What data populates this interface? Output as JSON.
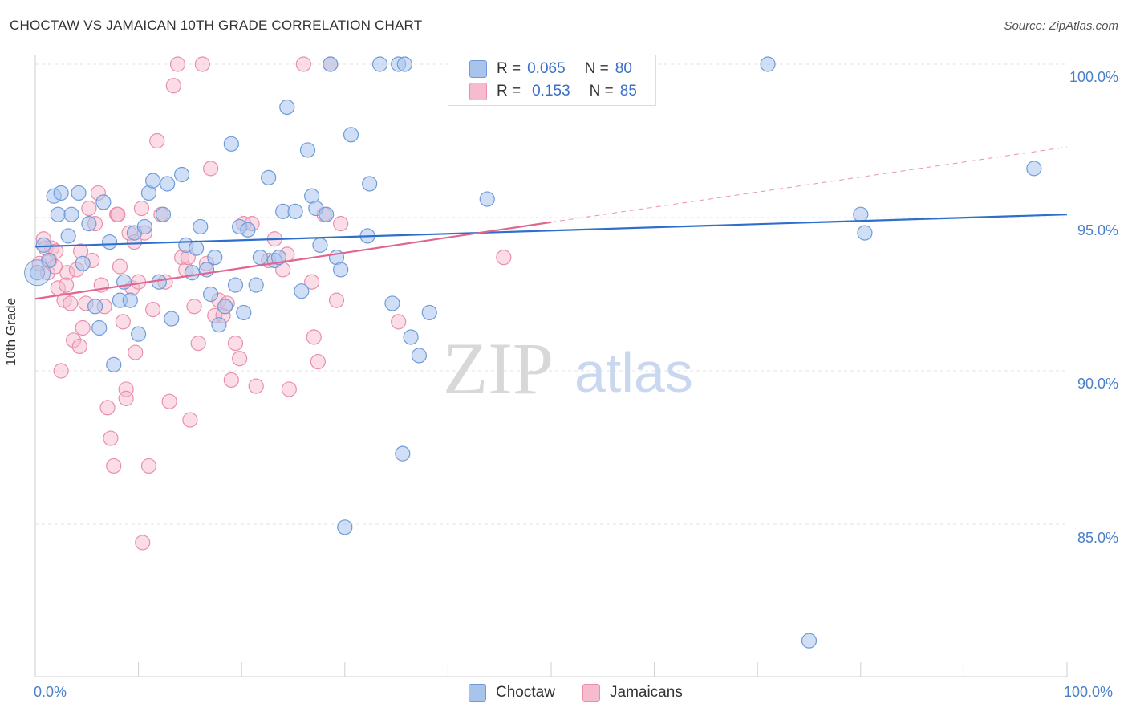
{
  "header": {
    "title": "CHOCTAW VS JAMAICAN 10TH GRADE CORRELATION CHART",
    "source": "Source: ZipAtlas.com"
  },
  "legend": {
    "r_label": "R =",
    "n_label": "N =",
    "choctaw": {
      "r": "0.065",
      "n": "80"
    },
    "jamaicans": {
      "r": "0.153",
      "n": "85"
    }
  },
  "bottom_legend": {
    "choctaw": "Choctaw",
    "jamaicans": "Jamaicans"
  },
  "watermark": {
    "zip": "ZIP",
    "atlas": "atlas"
  },
  "colors": {
    "choctaw_fill": "#a9c4ec",
    "choctaw_stroke": "#6f9bd9",
    "choctaw_line": "#2f6fcc",
    "jamaicans_fill": "#f6bccd",
    "jamaicans_stroke": "#ea8fab",
    "jamaicans_line": "#e06590",
    "tick_text": "#4a7fc8"
  },
  "chart_data": {
    "type": "scatter",
    "title": "CHOCTAW VS JAMAICAN 10TH GRADE CORRELATION CHART",
    "xlabel": "",
    "ylabel": "10th Grade",
    "xlim": [
      0,
      100
    ],
    "ylim": [
      80.5,
      100.8
    ],
    "x_tick_labels": [
      "0.0%",
      "100.0%"
    ],
    "y_ticks": [
      85,
      90,
      95,
      100
    ],
    "y_tick_labels": [
      "85.0%",
      "90.0%",
      "95.0%",
      "100.0%"
    ],
    "grid": true,
    "legend_placement": "top-center",
    "series": [
      {
        "name": "Choctaw",
        "r": 0.065,
        "n": 80,
        "trend": {
          "x": [
            0,
            100
          ],
          "y": [
            94.05,
            95.1
          ]
        },
        "points": [
          [
            0.2,
            93.2
          ],
          [
            0.8,
            94.1
          ],
          [
            1.3,
            93.6
          ],
          [
            1.8,
            95.7
          ],
          [
            2.2,
            95.1
          ],
          [
            2.5,
            95.8
          ],
          [
            3.2,
            94.4
          ],
          [
            3.5,
            95.1
          ],
          [
            4.2,
            95.8
          ],
          [
            4.6,
            93.5
          ],
          [
            5.2,
            94.8
          ],
          [
            5.8,
            92.1
          ],
          [
            6.2,
            91.4
          ],
          [
            6.6,
            95.5
          ],
          [
            7.2,
            94.2
          ],
          [
            7.6,
            90.2
          ],
          [
            8.2,
            92.3
          ],
          [
            8.6,
            92.9
          ],
          [
            9.2,
            92.3
          ],
          [
            9.6,
            94.5
          ],
          [
            10.0,
            91.2
          ],
          [
            10.6,
            94.7
          ],
          [
            11.0,
            95.8
          ],
          [
            11.4,
            96.2
          ],
          [
            12.0,
            92.9
          ],
          [
            12.4,
            95.1
          ],
          [
            12.8,
            96.1
          ],
          [
            13.2,
            91.7
          ],
          [
            14.2,
            96.4
          ],
          [
            14.6,
            94.1
          ],
          [
            15.2,
            93.2
          ],
          [
            15.6,
            94.0
          ],
          [
            16.0,
            94.7
          ],
          [
            16.6,
            93.3
          ],
          [
            17.0,
            92.5
          ],
          [
            17.4,
            93.7
          ],
          [
            17.8,
            91.5
          ],
          [
            18.4,
            92.1
          ],
          [
            19.0,
            97.4
          ],
          [
            19.4,
            92.8
          ],
          [
            19.8,
            94.7
          ],
          [
            20.2,
            91.9
          ],
          [
            20.6,
            94.6
          ],
          [
            21.4,
            92.8
          ],
          [
            21.8,
            93.7
          ],
          [
            22.6,
            96.3
          ],
          [
            23.2,
            93.6
          ],
          [
            23.6,
            93.7
          ],
          [
            24.0,
            95.2
          ],
          [
            24.4,
            98.6
          ],
          [
            25.2,
            95.2
          ],
          [
            25.8,
            92.6
          ],
          [
            26.4,
            97.2
          ],
          [
            26.8,
            95.7
          ],
          [
            27.2,
            95.3
          ],
          [
            27.6,
            94.1
          ],
          [
            28.2,
            95.1
          ],
          [
            28.6,
            100.0
          ],
          [
            29.2,
            93.7
          ],
          [
            29.6,
            93.3
          ],
          [
            30.0,
            84.9
          ],
          [
            30.6,
            97.7
          ],
          [
            32.2,
            94.4
          ],
          [
            32.4,
            96.1
          ],
          [
            33.4,
            100.0
          ],
          [
            34.6,
            92.2
          ],
          [
            35.2,
            100.0
          ],
          [
            35.6,
            87.3
          ],
          [
            35.8,
            100.0
          ],
          [
            36.4,
            91.1
          ],
          [
            37.2,
            90.5
          ],
          [
            38.2,
            91.9
          ],
          [
            43.8,
            95.6
          ],
          [
            45.4,
            100.0
          ],
          [
            71.0,
            100.0
          ],
          [
            75.0,
            81.2
          ],
          [
            80.0,
            95.1
          ],
          [
            80.4,
            94.5
          ],
          [
            96.8,
            96.6
          ],
          [
            44.6,
            100.0
          ]
        ]
      },
      {
        "name": "Jamaicans",
        "r": 0.153,
        "n": 85,
        "trend": {
          "x": [
            0,
            50
          ],
          "y": [
            92.35,
            94.85
          ]
        },
        "trend_extended": {
          "x": [
            50,
            100
          ],
          "y": [
            94.85,
            97.3
          ]
        },
        "points": [
          [
            0.4,
            93.5
          ],
          [
            0.8,
            94.3
          ],
          [
            1.2,
            93.2
          ],
          [
            1.4,
            93.6
          ],
          [
            1.6,
            94.0
          ],
          [
            1.9,
            93.4
          ],
          [
            2.2,
            92.7
          ],
          [
            2.5,
            90.0
          ],
          [
            2.8,
            92.3
          ],
          [
            3.1,
            93.2
          ],
          [
            3.4,
            92.2
          ],
          [
            3.7,
            91.0
          ],
          [
            4.0,
            93.3
          ],
          [
            4.3,
            90.8
          ],
          [
            4.6,
            91.4
          ],
          [
            4.9,
            92.2
          ],
          [
            5.2,
            95.3
          ],
          [
            5.5,
            93.6
          ],
          [
            5.8,
            94.8
          ],
          [
            6.1,
            95.8
          ],
          [
            6.4,
            92.8
          ],
          [
            6.7,
            92.1
          ],
          [
            7.0,
            88.8
          ],
          [
            7.3,
            87.8
          ],
          [
            7.6,
            86.9
          ],
          [
            7.9,
            95.1
          ],
          [
            8.2,
            93.4
          ],
          [
            8.5,
            91.6
          ],
          [
            8.8,
            89.4
          ],
          [
            9.1,
            94.5
          ],
          [
            9.4,
            92.7
          ],
          [
            9.7,
            90.6
          ],
          [
            10.0,
            92.9
          ],
          [
            10.3,
            95.3
          ],
          [
            10.6,
            94.5
          ],
          [
            11.0,
            86.9
          ],
          [
            11.4,
            92.0
          ],
          [
            11.8,
            97.5
          ],
          [
            12.2,
            95.1
          ],
          [
            12.6,
            92.9
          ],
          [
            13.0,
            89.0
          ],
          [
            13.4,
            99.3
          ],
          [
            13.8,
            100.0
          ],
          [
            14.2,
            93.7
          ],
          [
            14.6,
            93.3
          ],
          [
            15.0,
            88.4
          ],
          [
            15.4,
            92.1
          ],
          [
            15.8,
            90.9
          ],
          [
            16.2,
            100.0
          ],
          [
            16.6,
            93.5
          ],
          [
            17.0,
            96.6
          ],
          [
            17.4,
            91.8
          ],
          [
            17.8,
            92.3
          ],
          [
            18.2,
            91.8
          ],
          [
            18.6,
            92.2
          ],
          [
            19.0,
            89.7
          ],
          [
            19.4,
            90.9
          ],
          [
            19.8,
            90.4
          ],
          [
            20.2,
            94.8
          ],
          [
            21.0,
            94.8
          ],
          [
            21.4,
            89.5
          ],
          [
            22.6,
            93.6
          ],
          [
            23.2,
            94.3
          ],
          [
            24.0,
            93.3
          ],
          [
            24.6,
            89.4
          ],
          [
            26.0,
            100.0
          ],
          [
            26.8,
            92.9
          ],
          [
            27.0,
            91.1
          ],
          [
            27.4,
            90.3
          ],
          [
            28.0,
            95.1
          ],
          [
            28.6,
            100.0
          ],
          [
            29.2,
            92.3
          ],
          [
            35.2,
            91.6
          ],
          [
            45.4,
            93.7
          ],
          [
            10.4,
            84.4
          ],
          [
            8.8,
            89.1
          ],
          [
            1.0,
            94.0
          ],
          [
            2.0,
            93.9
          ],
          [
            3.0,
            92.8
          ],
          [
            4.4,
            93.9
          ],
          [
            8.0,
            95.1
          ],
          [
            9.6,
            94.2
          ],
          [
            14.8,
            93.7
          ],
          [
            24.4,
            93.8
          ],
          [
            29.6,
            94.8
          ]
        ]
      }
    ]
  }
}
